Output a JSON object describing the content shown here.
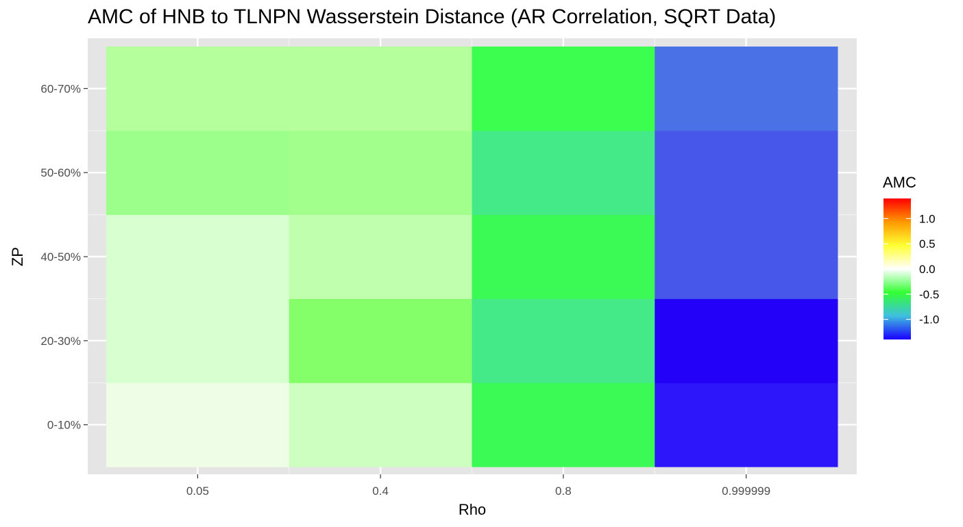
{
  "chart_data": {
    "type": "heatmap",
    "title": "AMC of HNB to TLNPN Wasserstein Distance (AR Correlation, SQRT Data)",
    "xlabel": "Rho",
    "ylabel": "ZP",
    "x_categories": [
      "0.05",
      "0.4",
      "0.8",
      "0.999999"
    ],
    "y_categories": [
      "0-10%",
      "20-30%",
      "40-50%",
      "50-60%",
      "60-70%"
    ],
    "values": [
      [
        -0.03,
        -0.14,
        -0.55,
        -1.3
      ],
      [
        -0.12,
        -0.37,
        -0.82,
        -1.35
      ],
      [
        -0.12,
        -0.18,
        -0.55,
        -1.05
      ],
      [
        -0.27,
        -0.3,
        -0.82,
        -1.05
      ],
      [
        -0.21,
        -0.21,
        -0.55,
        -0.9
      ]
    ],
    "colors": [
      [
        "#eefee6",
        "#ccffc0",
        "#3cfa55",
        "#2d16f9"
      ],
      [
        "#d8ffcf",
        "#84ff69",
        "#44e988",
        "#2300f7"
      ],
      [
        "#d8ffcf",
        "#c0ffae",
        "#3cfa55",
        "#4657ea"
      ],
      [
        "#9cff8b",
        "#a3ff8c",
        "#44e988",
        "#4657ea"
      ],
      [
        "#b5ff9c",
        "#b5ff9c",
        "#3cfe4e",
        "#4b71e7"
      ]
    ],
    "legend": {
      "title": "AMC",
      "ticks": [
        "1.0",
        "0.5",
        "0.0",
        "-0.5",
        "-1.0"
      ],
      "tick_values": [
        1.0,
        0.5,
        0.0,
        -0.5,
        -1.0
      ],
      "range": [
        -1.4,
        1.4
      ],
      "placement": "right",
      "gradient": [
        "#1a00ff",
        "#3fbfe0",
        "#33ff33",
        "#ffffff",
        "#ffff33",
        "#ff9900",
        "#ff0000"
      ]
    },
    "panel_background": "#e5e5e5",
    "grid": true
  }
}
